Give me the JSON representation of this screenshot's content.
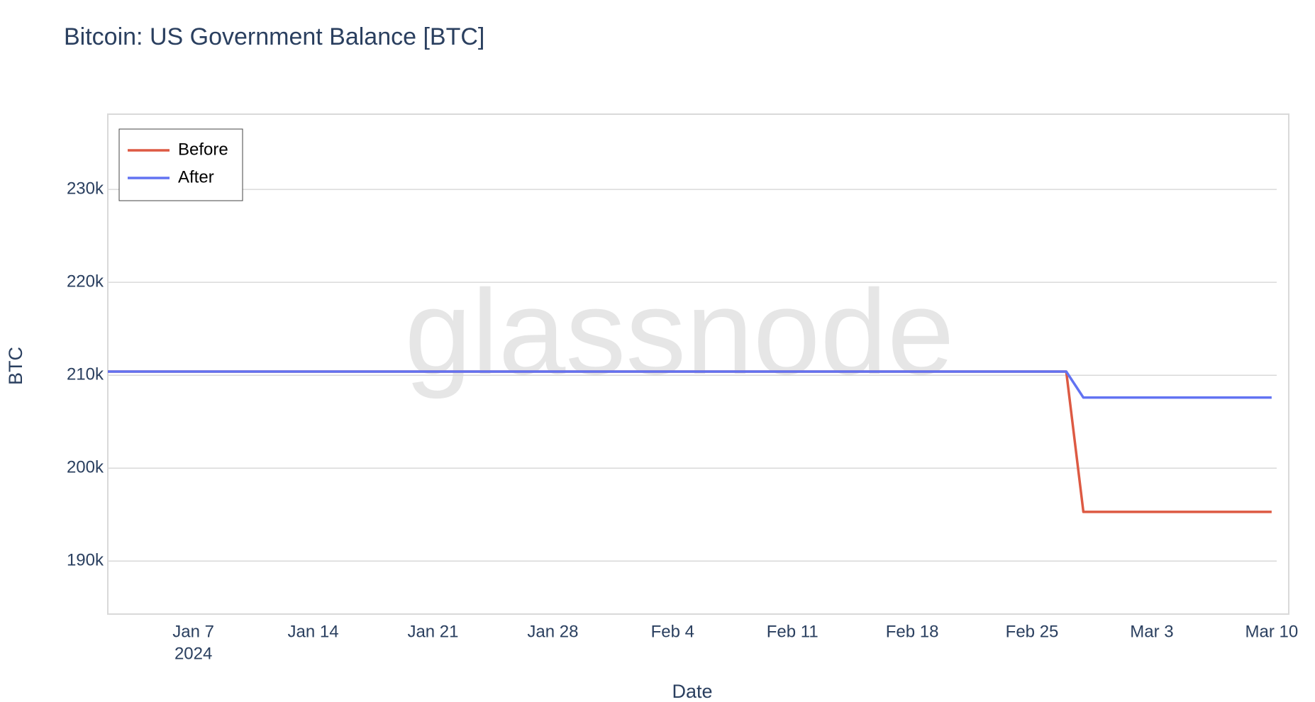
{
  "chart_data": {
    "type": "line",
    "title": "Bitcoin: US Government Balance [BTC]",
    "watermark": "glassnode",
    "x_label": "Date",
    "y_label": "BTC",
    "x": [
      "2024-01-02",
      "2024-02-27",
      "2024-02-28",
      "2024-03-10"
    ],
    "series": [
      {
        "name": "Before",
        "color": "#dd5a43",
        "values": [
          210400,
          210400,
          195300,
          195300
        ]
      },
      {
        "name": "After",
        "color": "#6273f2",
        "values": [
          210400,
          210400,
          207600,
          207600
        ]
      }
    ],
    "xlim": [
      "2024-01-02",
      "2024-03-11"
    ],
    "xticks": [
      {
        "value": "2024-01-07",
        "label": "Jan 7"
      },
      {
        "value": "2024-01-14",
        "label": "Jan 14"
      },
      {
        "value": "2024-01-21",
        "label": "Jan 21"
      },
      {
        "value": "2024-01-28",
        "label": "Jan 28"
      },
      {
        "value": "2024-02-04",
        "label": "Feb 4"
      },
      {
        "value": "2024-02-11",
        "label": "Feb 11"
      },
      {
        "value": "2024-02-18",
        "label": "Feb 18"
      },
      {
        "value": "2024-02-25",
        "label": "Feb 25"
      },
      {
        "value": "2024-03-03",
        "label": "Mar 3"
      },
      {
        "value": "2024-03-10",
        "label": "Mar 10"
      }
    ],
    "x_year_label": "2024",
    "ylim": [
      184300,
      238100
    ],
    "yticks": [
      {
        "value": 190000,
        "label": "190k"
      },
      {
        "value": 200000,
        "label": "200k"
      },
      {
        "value": 210000,
        "label": "210k"
      },
      {
        "value": 220000,
        "label": "220k"
      },
      {
        "value": 230000,
        "label": "230k"
      }
    ],
    "grid": true,
    "legend": "top-left"
  }
}
